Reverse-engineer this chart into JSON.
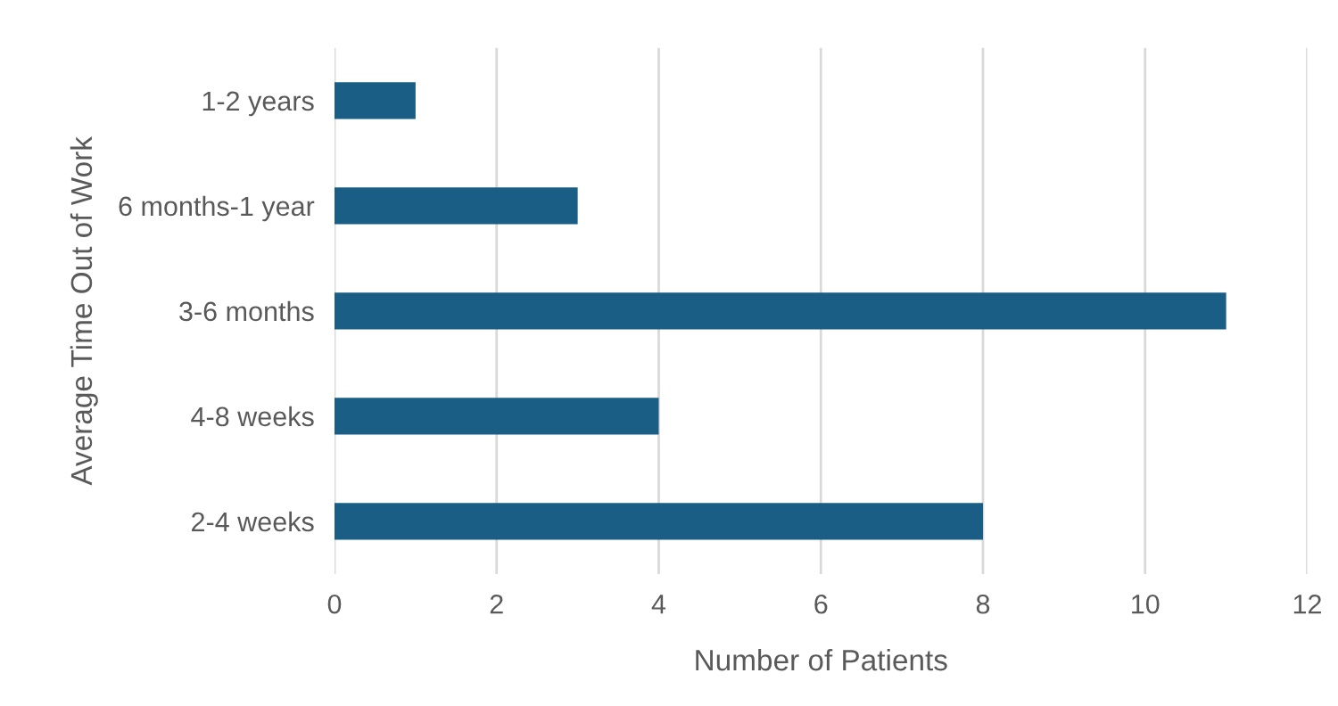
{
  "chart_data": {
    "type": "bar",
    "orientation": "horizontal",
    "categories": [
      "1-2 years",
      "6 months-1 year",
      "3-6 months",
      "4-8 weeks",
      "2-4 weeks"
    ],
    "values": [
      1,
      3,
      11,
      4,
      8
    ],
    "color": "#1a5e85",
    "xlabel": "Number of Patients",
    "ylabel": "Average Time Out of Work",
    "xlim": [
      0,
      12
    ],
    "xticks": [
      0,
      2,
      4,
      6,
      8,
      10,
      12
    ],
    "grid": "x",
    "legend": false
  }
}
